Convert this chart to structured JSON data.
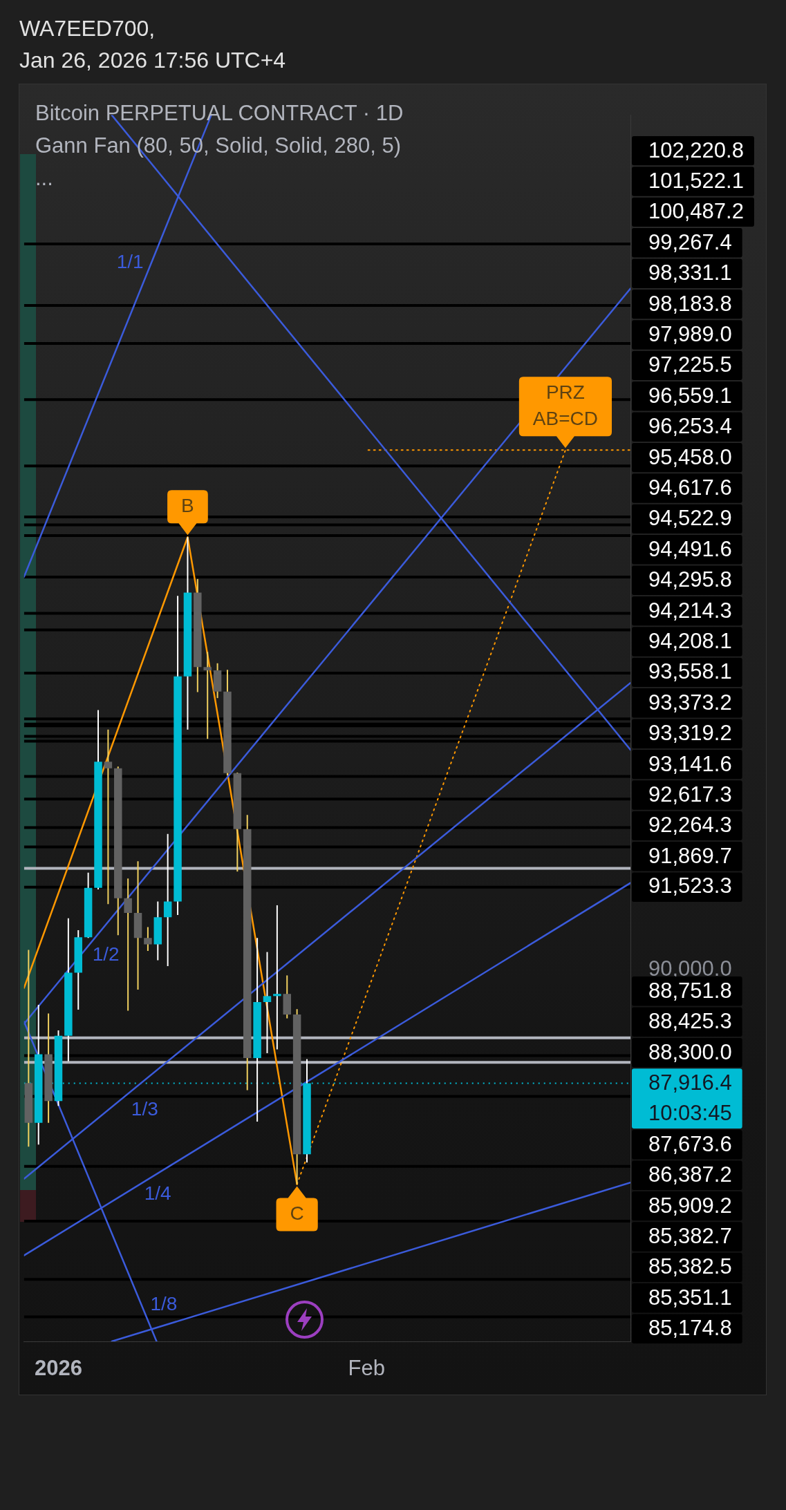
{
  "chart_data": {
    "type": "candlestick",
    "title": "Bitcoin PERPETUAL CONTRACT · 1D",
    "subtitle": "Gann Fan (80, 50, Solid, Solid, 280, 5)",
    "annotations": [
      "WA7EED700,",
      "Jan 26, 2026 17:56 UTC+4",
      "...",
      {
        "text": "B",
        "x": "2026-01-14",
        "y": 97960
      },
      {
        "text": "C",
        "x": "2026-01-25",
        "y": 86060
      },
      {
        "text": "PRZ AB=CD",
        "x": "2026-02-21",
        "y": 99560
      },
      "102,220.8",
      "101,522.1",
      "100,487.2",
      "99,267.4",
      "98,331.1",
      "98,183.8",
      "97,989.0",
      "97,225.5",
      "96,559.1",
      "96,253.4",
      "95,458.0",
      "94,617.6",
      "94,522.9",
      "94,491.6",
      "94,295.8",
      "94,214.3",
      "94,208.1",
      "93,558.1",
      "93,373.2",
      "93,319.2",
      "93,141.6",
      "92,617.3",
      "92,264.3",
      "91,869.7",
      "88,751.8",
      "88,425.3",
      "88,300.0",
      "87,673.6",
      "86,387.2",
      "85,909.2",
      "85,382.7",
      "85,382.5",
      "85,351.1",
      "85,174.8"
    ],
    "xlim": [
      "2025-12-28T13:00",
      "2026-02-27T13:00"
    ],
    "xticks": [
      {
        "value": "2026-01-01",
        "label": "2026"
      },
      {
        "value": "2026-02-01",
        "label": "Feb"
      }
    ],
    "ylim": [
      83170,
      105720
    ],
    "yticks": [
      {
        "value": 90000,
        "label": "90,000.0"
      },
      {
        "value": 91523.3,
        "label": "91,523.3"
      }
    ],
    "series": [
      {
        "x": [
          "2025-12-29",
          "2025-12-30",
          "2025-12-31",
          "2026-01-01",
          "2026-01-02",
          "2026-01-03",
          "2026-01-04",
          "2026-01-05",
          "2026-01-06",
          "2026-01-07",
          "2026-01-08",
          "2026-01-09",
          "2026-01-10",
          "2026-01-11",
          "2026-01-12",
          "2026-01-13",
          "2026-01-14",
          "2026-01-15",
          "2026-01-16",
          "2026-01-17",
          "2026-01-18",
          "2026-01-19",
          "2026-01-20",
          "2026-01-21",
          "2026-01-22",
          "2026-01-23",
          "2026-01-24",
          "2026-01-25",
          "2026-01-26"
        ],
        "ohlc": [
          [
            87920,
            90370,
            86750,
            87190
          ],
          [
            87190,
            89360,
            86790,
            88450
          ],
          [
            88450,
            89200,
            87190,
            87590
          ],
          [
            87590,
            88890,
            87500,
            88790
          ],
          [
            88790,
            90950,
            88320,
            89950
          ],
          [
            89950,
            90730,
            89270,
            90600
          ],
          [
            90600,
            91790,
            90590,
            91510
          ],
          [
            91510,
            94780,
            91480,
            93830
          ],
          [
            93830,
            94420,
            91210,
            93710
          ],
          [
            93710,
            93740,
            90640,
            91320
          ],
          [
            91320,
            91680,
            89250,
            91050
          ],
          [
            91050,
            92000,
            89640,
            90590
          ],
          [
            90590,
            90790,
            90350,
            90470
          ],
          [
            90470,
            91260,
            90180,
            90970
          ],
          [
            90970,
            92500,
            90070,
            91260
          ],
          [
            91260,
            96880,
            91010,
            95400
          ],
          [
            95400,
            97960,
            94420,
            96940
          ],
          [
            96940,
            97190,
            95110,
            95570
          ],
          [
            95570,
            95850,
            94250,
            95510
          ],
          [
            95510,
            95640,
            95000,
            95120
          ],
          [
            95120,
            95520,
            93580,
            93620
          ],
          [
            93620,
            93630,
            91810,
            92590
          ],
          [
            92590,
            92850,
            87790,
            88380
          ],
          [
            88380,
            90590,
            87210,
            89410
          ],
          [
            89410,
            90330,
            88470,
            89520
          ],
          [
            89520,
            91190,
            88540,
            89560
          ],
          [
            89560,
            89900,
            89110,
            89180
          ],
          [
            89180,
            89280,
            86060,
            86610
          ],
          [
            86610,
            88360,
            86460,
            87916.4
          ]
        ],
        "colors": [
          "#626262",
          "#00bcd4",
          "#626262",
          "#00bcd4",
          "#00bcd4",
          "#00bcd4",
          "#00bcd4",
          "#00bcd4",
          "#626262",
          "#626262",
          "#626262",
          "#626262",
          "#626262",
          "#00bcd4",
          "#00bcd4",
          "#00bcd4",
          "#00bcd4",
          "#626262",
          "#626262",
          "#626262",
          "#626262",
          "#626262",
          "#626262",
          "#00bcd4",
          "#00bcd4",
          "#00bcd4",
          "#626262",
          "#626262",
          "#00bcd4"
        ]
      },
      {
        "name": "1/1",
        "type": "line",
        "color": "#3b5bdb",
        "x": [
          "2025-12-28T13:00",
          "2026-01-16T09:00"
        ],
        "values": [
          97230,
          105720
        ]
      },
      {
        "name": "1/2",
        "type": "line",
        "color": "#3b5bdb",
        "x": [
          "2025-12-28T13:00",
          "2026-02-27T13:00"
        ],
        "values": [
          89010,
          102530
        ]
      },
      {
        "name": "1/3",
        "type": "line",
        "color": "#3b5bdb",
        "x": [
          "2025-12-28T13:00",
          "2026-02-27T13:00"
        ],
        "values": [
          86160,
          95280
        ]
      },
      {
        "name": "1/4",
        "type": "line",
        "color": "#3b5bdb",
        "x": [
          "2025-12-28T13:00",
          "2026-02-27T13:00"
        ],
        "values": [
          84750,
          91600
        ]
      },
      {
        "name": "1/8",
        "type": "line",
        "color": "#3b5bdb",
        "x": [
          "2026-01-06T09:00",
          "2026-02-27T13:00"
        ],
        "values": [
          83170,
          86090
        ]
      },
      {
        "type": "line",
        "color": "#3b5bdb",
        "x": [
          "2026-01-06T09:00",
          "2026-02-27T13:00"
        ],
        "values": [
          105720,
          94050
        ]
      },
      {
        "type": "line",
        "color": "#3b5bdb",
        "x": [
          "2025-12-28T13:00",
          "2026-01-10T21:00"
        ],
        "values": [
          89050,
          83170
        ]
      },
      {
        "type": "line",
        "color": "#ff9800",
        "x": [
          "2025-12-28T13:00",
          "2026-01-14",
          "2026-01-25"
        ],
        "values": [
          89670,
          97960,
          86060
        ]
      },
      {
        "type": "line",
        "color": "#ff9800",
        "line_style": "dotted",
        "x": [
          "2026-01-25",
          "2026-02-21"
        ],
        "values": [
          86060,
          99560
        ]
      },
      {
        "type": "line",
        "color": "#ff9800",
        "line_style": "dotted",
        "x": [
          "2026-02-01T04:00",
          "2026-02-27T13:00"
        ],
        "values": [
          99560,
          99560
        ]
      }
    ],
    "ref_lines": [
      {
        "axis": "y",
        "value": 103350,
        "color": "#000000"
      },
      {
        "axis": "y",
        "value": 102220.8,
        "color": "#000000"
      },
      {
        "axis": "y",
        "value": 101522.1,
        "color": "#000000"
      },
      {
        "axis": "y",
        "value": 100487.2,
        "color": "#000000"
      },
      {
        "axis": "y",
        "value": 99267.4,
        "color": "#000000"
      },
      {
        "axis": "y",
        "value": 98331.1,
        "color": "#000000"
      },
      {
        "axis": "y",
        "value": 98183.8,
        "color": "#000000"
      },
      {
        "axis": "y",
        "value": 97989,
        "color": "#000000"
      },
      {
        "axis": "y",
        "value": 97225.5,
        "color": "#000000"
      },
      {
        "axis": "y",
        "value": 96559.1,
        "color": "#000000"
      },
      {
        "axis": "y",
        "value": 96253.4,
        "color": "#000000"
      },
      {
        "axis": "y",
        "value": 95458,
        "color": "#000000"
      },
      {
        "axis": "y",
        "value": 94617.6,
        "color": "#000000"
      },
      {
        "axis": "y",
        "value": 94522.9,
        "color": "#000000"
      },
      {
        "axis": "y",
        "value": 94491.6,
        "color": "#000000"
      },
      {
        "axis": "y",
        "value": 94295.8,
        "color": "#000000"
      },
      {
        "axis": "y",
        "value": 94208.1,
        "color": "#000000"
      },
      {
        "axis": "y",
        "value": 93558.1,
        "color": "#000000"
      },
      {
        "axis": "y",
        "value": 93141.6,
        "color": "#000000"
      },
      {
        "axis": "y",
        "value": 92617.3,
        "color": "#000000"
      },
      {
        "axis": "y",
        "value": 92264.3,
        "color": "#000000"
      },
      {
        "axis": "y",
        "value": 91869.7,
        "color": "#b2b5be"
      },
      {
        "axis": "y",
        "value": 91523.3,
        "color": "#000000"
      },
      {
        "axis": "y",
        "value": 88751.8,
        "color": "#b2b5be"
      },
      {
        "axis": "y",
        "value": 88425.3,
        "color": "#000000"
      },
      {
        "axis": "y",
        "value": 88300,
        "color": "#b2b5be"
      },
      {
        "axis": "y",
        "value": 87916.4,
        "label": "87,916.4\n10:03:45",
        "color": "#00bcd4",
        "line_style": "dotted"
      },
      {
        "axis": "y",
        "value": 87673.6,
        "color": "#000000"
      },
      {
        "axis": "y",
        "value": 86387.2,
        "color": "#000000"
      },
      {
        "axis": "y",
        "value": 85382.7,
        "color": "#000000"
      },
      {
        "axis": "y",
        "value": 84310,
        "color": "#000000"
      },
      {
        "axis": "y",
        "value": 83620,
        "color": "#000000"
      }
    ]
  }
}
